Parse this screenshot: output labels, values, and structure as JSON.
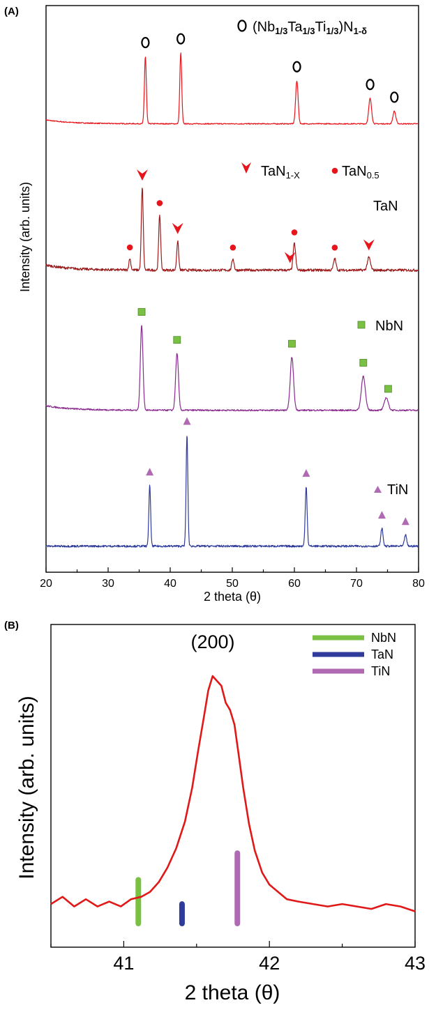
{
  "colors": {
    "highentropy": "#e8141b",
    "tan": "#9b1c1c",
    "nbn": "#8a2b8f",
    "tin": "#2e3b9a",
    "tan_marker": "#e8141b",
    "nbn_marker": "#7ac143",
    "tin_marker": "#b06ab3",
    "b_curve": "#e01818",
    "b_nbn": "#7ac143",
    "b_tan": "#2e3b9a",
    "b_tin": "#b06ab3"
  },
  "chart_data": [
    {
      "id": "A",
      "panel_label": "(A)",
      "type": "line",
      "xlabel": "2 theta (θ)",
      "ylabel": "Intensity (arb. units)",
      "xlim": [
        20,
        80
      ],
      "xticks": [
        20,
        30,
        40,
        50,
        60,
        70,
        80
      ],
      "xtick_labels": [
        "20",
        "30",
        "40",
        "50",
        "60",
        "70",
        "80"
      ],
      "series": [
        {
          "name": "(Nb1/3Ta1/3Ti1/3)N1-δ",
          "key": "highentropy",
          "baseline": 0.9,
          "background_decay": 0.3,
          "noise": 0.04,
          "peaks": [
            {
              "x": 36.0,
              "h": 5.3,
              "w": 0.22
            },
            {
              "x": 41.7,
              "h": 5.6,
              "w": 0.22
            },
            {
              "x": 60.4,
              "h": 3.4,
              "w": 0.28
            },
            {
              "x": 72.2,
              "h": 2.0,
              "w": 0.32
            },
            {
              "x": 76.1,
              "h": 1.0,
              "w": 0.32
            }
          ],
          "markers": [
            {
              "x": 36.0,
              "symbol": "circle-open"
            },
            {
              "x": 41.7,
              "symbol": "circle-open"
            },
            {
              "x": 60.4,
              "symbol": "circle-open"
            },
            {
              "x": 72.2,
              "symbol": "circle-open"
            },
            {
              "x": 76.1,
              "symbol": "circle-open"
            }
          ]
        },
        {
          "name": "TaN",
          "key": "tan",
          "baseline": 0.9,
          "background_decay": 0.4,
          "noise": 0.1,
          "peaks": [
            {
              "x": 33.5,
              "h": 0.9,
              "w": 0.22
            },
            {
              "x": 35.5,
              "h": 6.5,
              "w": 0.22
            },
            {
              "x": 38.3,
              "h": 4.4,
              "w": 0.22
            },
            {
              "x": 41.2,
              "h": 2.3,
              "w": 0.22
            },
            {
              "x": 50.1,
              "h": 0.9,
              "w": 0.25
            },
            {
              "x": 60.0,
              "h": 2.1,
              "w": 0.28
            },
            {
              "x": 66.5,
              "h": 0.9,
              "w": 0.28
            },
            {
              "x": 72.0,
              "h": 1.0,
              "w": 0.35
            }
          ],
          "markers": [
            {
              "x": 33.5,
              "symbol": "dot"
            },
            {
              "x": 35.5,
              "symbol": "chevron"
            },
            {
              "x": 38.3,
              "symbol": "dot"
            },
            {
              "x": 41.2,
              "symbol": "chevron"
            },
            {
              "x": 50.1,
              "symbol": "dot"
            },
            {
              "x": 59.3,
              "symbol": "chevron"
            },
            {
              "x": 60.0,
              "symbol": "dot"
            },
            {
              "x": 66.5,
              "symbol": "dot"
            },
            {
              "x": 72.0,
              "symbol": "chevron"
            }
          ]
        },
        {
          "name": "NbN",
          "key": "nbn",
          "baseline": 0.9,
          "background_decay": 0.35,
          "noise": 0.06,
          "peaks": [
            {
              "x": 35.4,
              "h": 6.7,
              "w": 0.3
            },
            {
              "x": 41.1,
              "h": 4.5,
              "w": 0.32
            },
            {
              "x": 59.6,
              "h": 4.2,
              "w": 0.38
            },
            {
              "x": 71.1,
              "h": 2.7,
              "w": 0.45
            },
            {
              "x": 74.8,
              "h": 1.0,
              "w": 0.45
            }
          ],
          "markers": [
            {
              "x": 35.4,
              "symbol": "square"
            },
            {
              "x": 41.1,
              "symbol": "square"
            },
            {
              "x": 59.6,
              "symbol": "square"
            },
            {
              "x": 71.1,
              "symbol": "square"
            },
            {
              "x": 75.1,
              "symbol": "square"
            }
          ]
        },
        {
          "name": "TiN",
          "key": "tin",
          "baseline": 0.9,
          "background_decay": 0.0,
          "noise": 0.08,
          "peaks": [
            {
              "x": 36.7,
              "h": 4.8,
              "w": 0.2
            },
            {
              "x": 42.7,
              "h": 8.8,
              "w": 0.2
            },
            {
              "x": 61.9,
              "h": 4.7,
              "w": 0.22
            },
            {
              "x": 74.1,
              "h": 1.4,
              "w": 0.25
            },
            {
              "x": 77.9,
              "h": 0.9,
              "w": 0.25
            }
          ],
          "markers": [
            {
              "x": 36.7,
              "symbol": "triangle"
            },
            {
              "x": 42.7,
              "symbol": "triangle"
            },
            {
              "x": 61.9,
              "symbol": "triangle"
            },
            {
              "x": 74.1,
              "symbol": "triangle"
            },
            {
              "x": 77.9,
              "symbol": "triangle"
            }
          ]
        }
      ],
      "legend": [
        {
          "symbol": "circle-open",
          "parts": [
            [
              "(Nb",
              ""
            ],
            [
              "1/3",
              "sub"
            ],
            [
              "Ta",
              ""
            ],
            [
              "1/3",
              "sub"
            ],
            [
              "Ti",
              ""
            ],
            [
              "1/3",
              "sub"
            ],
            [
              ")N",
              ""
            ],
            [
              "1-δ",
              "sub"
            ]
          ]
        },
        {
          "symbol": "chevron",
          "parts": [
            [
              "TaN",
              ""
            ],
            [
              "1-X",
              "sub"
            ]
          ]
        },
        {
          "symbol": "dot",
          "parts": [
            [
              "TaN",
              ""
            ],
            [
              "0.5",
              "sub"
            ]
          ]
        },
        {
          "symbol": "none",
          "parts": [
            [
              "TaN",
              ""
            ]
          ]
        },
        {
          "symbol": "square",
          "parts": [
            [
              "NbN",
              ""
            ]
          ]
        },
        {
          "symbol": "triangle",
          "parts": [
            [
              "TiN",
              ""
            ]
          ]
        }
      ]
    },
    {
      "id": "B",
      "panel_label": "(B)",
      "type": "line",
      "xlabel": "2 theta (θ)",
      "ylabel": "Intensity (arb. units)",
      "xlim": [
        40.5,
        43
      ],
      "xticks": [
        41,
        42,
        43
      ],
      "xtick_labels": [
        "41",
        "42",
        "43"
      ],
      "annotation": "(200)",
      "series": [
        {
          "name": "(200) peak",
          "points": [
            [
              40.5,
              0.06
            ],
            [
              40.58,
              0.09
            ],
            [
              40.66,
              0.05
            ],
            [
              40.74,
              0.08
            ],
            [
              40.82,
              0.05
            ],
            [
              40.9,
              0.07
            ],
            [
              40.98,
              0.05
            ],
            [
              41.05,
              0.08
            ],
            [
              41.12,
              0.09
            ],
            [
              41.18,
              0.11
            ],
            [
              41.24,
              0.15
            ],
            [
              41.3,
              0.21
            ],
            [
              41.36,
              0.29
            ],
            [
              41.42,
              0.4
            ],
            [
              41.47,
              0.54
            ],
            [
              41.51,
              0.69
            ],
            [
              41.55,
              0.83
            ],
            [
              41.58,
              0.94
            ],
            [
              41.61,
              1.0
            ],
            [
              41.64,
              0.98
            ],
            [
              41.67,
              0.96
            ],
            [
              41.7,
              0.89
            ],
            [
              41.73,
              0.86
            ],
            [
              41.76,
              0.8
            ],
            [
              41.79,
              0.67
            ],
            [
              41.82,
              0.54
            ],
            [
              41.86,
              0.39
            ],
            [
              41.9,
              0.28
            ],
            [
              41.95,
              0.19
            ],
            [
              42.0,
              0.14
            ],
            [
              42.06,
              0.11
            ],
            [
              42.12,
              0.08
            ],
            [
              42.2,
              0.07
            ],
            [
              42.3,
              0.06
            ],
            [
              42.4,
              0.05
            ],
            [
              42.5,
              0.06
            ],
            [
              42.6,
              0.05
            ],
            [
              42.7,
              0.04
            ],
            [
              42.8,
              0.06
            ],
            [
              42.9,
              0.05
            ],
            [
              43.0,
              0.03
            ]
          ]
        }
      ],
      "reference_lines": [
        {
          "name": "NbN",
          "x": 41.1,
          "height": 0.18
        },
        {
          "name": "TaN",
          "x": 41.4,
          "height": 0.08
        },
        {
          "name": "TiN",
          "x": 41.78,
          "height": 0.29
        }
      ],
      "legend": [
        "NbN",
        "TaN",
        "TiN"
      ]
    }
  ]
}
